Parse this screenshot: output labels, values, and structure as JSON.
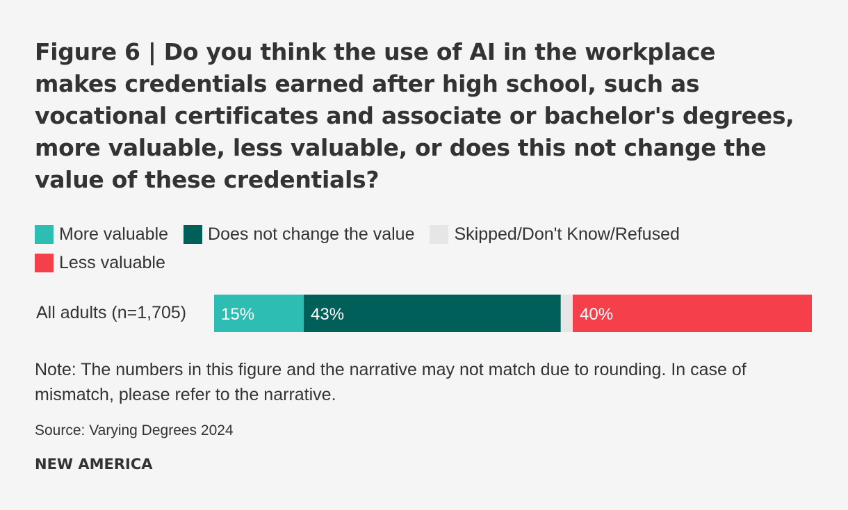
{
  "title": "Figure 6 | Do you think the use of AI in the workplace makes credentials earned after high school, such as vocational certificates and associate or bachelor's degrees, more valuable, less valuable, or does this not change the value of these credentials?",
  "legend": [
    {
      "label": "More valuable",
      "color": "#2ebdb2"
    },
    {
      "label": "Does not change the value",
      "color": "#005f58"
    },
    {
      "label": "Skipped/Don't Know/Refused",
      "color": "#e6e6e6"
    },
    {
      "label": "Less valuable",
      "color": "#f5404b"
    }
  ],
  "chart_data": {
    "type": "bar",
    "orientation": "horizontal",
    "stacked": true,
    "categories": [
      "All adults (n=1,705)"
    ],
    "series": [
      {
        "name": "More valuable",
        "values": [
          15
        ],
        "label": "15%",
        "color": "#2ebdb2"
      },
      {
        "name": "Does not change the value",
        "values": [
          43
        ],
        "label": "43%",
        "color": "#005f58"
      },
      {
        "name": "Skipped/Don't Know/Refused",
        "values": [
          2
        ],
        "label": "",
        "color": "#e6e6e6"
      },
      {
        "name": "Less valuable",
        "values": [
          40
        ],
        "label": "40%",
        "color": "#f5404b"
      }
    ],
    "xlim": [
      0,
      100
    ],
    "grid": false,
    "legend_position": "top"
  },
  "note": "Note: The numbers in this figure and the narrative may not match due to rounding. In case of mismatch, please refer to the narrative.",
  "source": "Source: Varying Degrees 2024",
  "brand": "NEW AMERICA"
}
